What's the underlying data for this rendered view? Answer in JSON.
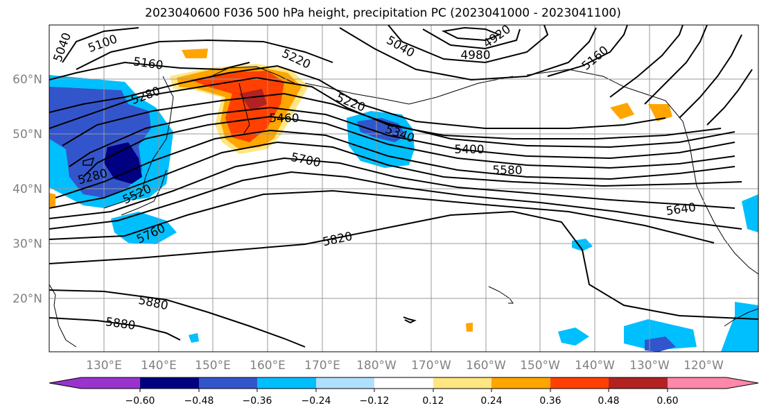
{
  "title": "2023040600 F036 500 hPa height, precipitation PC (2023041000 - 2023041100)",
  "lat_labels": [
    "60°N",
    "50°N",
    "40°N",
    "30°N",
    "20°N"
  ],
  "lon_labels": [
    "130°E",
    "140°E",
    "150°E",
    "160°E",
    "170°E",
    "180°W",
    "170°W",
    "160°W",
    "150°W",
    "140°W",
    "130°W",
    "120°W"
  ],
  "contour_labels": [
    "5040",
    "5100",
    "5160",
    "5220",
    "5280",
    "5460",
    "5220",
    "5040",
    "4980",
    "4920",
    "5160",
    "5340",
    "5400",
    "5700",
    "5580",
    "5280",
    "5520",
    "5640",
    "5760",
    "5820",
    "5880",
    "5880"
  ],
  "colorbar": {
    "ticks": [
      "−0.60",
      "−0.48",
      "−0.36",
      "−0.24",
      "−0.12",
      "0.12",
      "0.24",
      "0.36",
      "0.48",
      "0.60"
    ],
    "colors": [
      "#9933cc",
      "#000080",
      "#3355cc",
      "#00bfff",
      "#b0e0ff",
      "#ffffff",
      "#ffe680",
      "#ffa500",
      "#ff4000",
      "#b22222",
      "#ff88aa"
    ]
  },
  "colors": {
    "neg_strong": "#000080",
    "neg_mid": "#3355cc",
    "neg_light": "#00bfff",
    "neg_faint": "#b0e0ff",
    "pos_faint": "#ffe680",
    "pos_light": "#ffa500",
    "pos_mid": "#ff4000",
    "pos_strong": "#b22222"
  }
}
